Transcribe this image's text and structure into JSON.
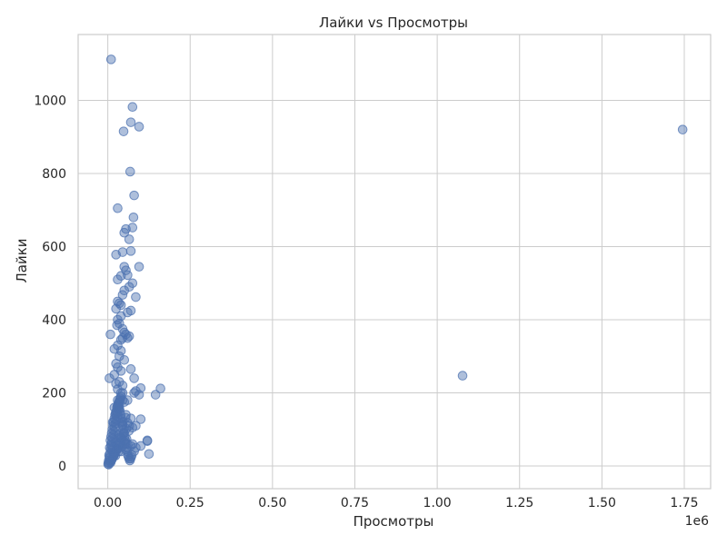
{
  "chart_data": {
    "type": "scatter",
    "title": "Лайки vs Просмотры",
    "xlabel": "Просмотры",
    "ylabel": "Лайки",
    "x_offset_label": "1e6",
    "xlim": [
      -0.09,
      1.83
    ],
    "ylim": [
      -62,
      1180
    ],
    "x_ticks": [
      0.0,
      0.25,
      0.5,
      0.75,
      1.0,
      1.25,
      1.5,
      1.75
    ],
    "x_tick_labels": [
      "0.00",
      "0.25",
      "0.50",
      "0.75",
      "1.00",
      "1.25",
      "1.50",
      "1.75"
    ],
    "y_ticks": [
      0,
      200,
      400,
      600,
      800,
      1000
    ],
    "y_tick_labels": [
      "0",
      "200",
      "400",
      "600",
      "800",
      "1000"
    ],
    "grid": true,
    "colors": {
      "points": "#4c72b0",
      "grid": "#cccccc",
      "text": "#262626"
    },
    "series": [
      {
        "x": [
          0.01,
          0.075,
          0.07,
          0.048,
          0.095,
          1.745,
          0.068,
          0.08,
          0.03,
          0.078,
          0.075,
          0.055,
          0.05,
          0.065,
          0.045,
          0.07,
          0.025,
          0.05,
          0.055,
          0.095,
          0.04,
          0.03,
          0.06,
          0.075,
          0.085,
          0.03,
          0.05,
          0.045,
          0.065,
          0.04,
          0.035,
          0.025,
          0.008,
          0.07,
          0.04,
          0.03,
          0.06,
          0.028,
          0.035,
          0.045,
          0.05,
          0.055,
          0.045,
          0.04,
          0.03,
          0.02,
          0.06,
          0.065,
          0.04,
          0.035,
          0.05,
          0.025,
          0.03,
          0.04,
          0.07,
          0.08,
          0.02,
          0.005,
          0.16,
          0.1,
          0.085,
          0.095,
          0.145,
          0.08,
          0.045,
          0.06,
          0.05,
          0.03,
          0.035,
          0.1,
          0.07,
          0.06,
          0.045,
          0.085,
          0.075,
          0.12,
          0.1,
          0.08,
          0.125,
          0.06,
          0.12,
          0.075,
          0.07,
          0.085,
          0.055,
          0.04,
          1.077,
          0.035,
          0.025,
          0.03,
          0.045,
          0.04,
          0.038,
          0.036,
          0.034,
          0.032,
          0.03,
          0.028,
          0.026,
          0.024,
          0.022,
          0.02,
          0.018,
          0.016,
          0.014,
          0.012,
          0.01,
          0.008,
          0.006,
          0.004,
          0.002,
          0.001,
          0.003,
          0.005,
          0.007,
          0.009,
          0.011,
          0.013,
          0.015,
          0.017,
          0.019,
          0.021,
          0.023,
          0.025,
          0.027,
          0.029,
          0.031,
          0.033,
          0.035,
          0.037,
          0.039,
          0.041,
          0.043,
          0.045,
          0.047,
          0.049,
          0.051,
          0.053,
          0.055,
          0.057,
          0.059,
          0.061,
          0.063,
          0.065,
          0.067,
          0.069,
          0.071,
          0.073,
          0.04,
          0.03,
          0.02,
          0.01,
          0.015,
          0.025,
          0.035,
          0.045,
          0.055,
          0.065,
          0.05,
          0.042,
          0.036,
          0.028,
          0.022,
          0.018,
          0.012,
          0.008,
          0.004,
          0.006,
          0.014,
          0.024,
          0.034,
          0.044,
          0.054,
          0.064,
          0.038,
          0.026,
          0.016,
          0.046,
          0.056,
          0.032,
          0.021,
          0.031,
          0.041,
          0.027,
          0.017,
          0.037,
          0.047,
          0.057,
          0.019,
          0.029,
          0.039,
          0.049,
          0.011,
          0.023,
          0.033,
          0.043,
          0.053,
          0.013,
          0.009,
          0.003
        ],
        "y": [
          1112,
          982,
          940,
          915,
          928,
          920,
          805,
          740,
          705,
          680,
          652,
          648,
          638,
          620,
          585,
          588,
          578,
          545,
          535,
          545,
          520,
          510,
          522,
          500,
          462,
          450,
          480,
          468,
          490,
          440,
          445,
          430,
          360,
          425,
          410,
          400,
          420,
          385,
          390,
          375,
          365,
          360,
          350,
          345,
          330,
          320,
          350,
          355,
          315,
          300,
          290,
          280,
          270,
          260,
          265,
          240,
          250,
          240,
          212,
          213,
          205,
          195,
          195,
          200,
          220,
          180,
          175,
          165,
          155,
          128,
          130,
          118,
          115,
          110,
          105,
          70,
          55,
          40,
          33,
          60,
          68,
          60,
          55,
          50,
          45,
          40,
          247,
          230,
          225,
          210,
          200,
          190,
          185,
          180,
          175,
          170,
          165,
          160,
          150,
          145,
          140,
          130,
          120,
          110,
          100,
          90,
          80,
          70,
          50,
          30,
          10,
          5,
          15,
          25,
          35,
          45,
          55,
          65,
          75,
          85,
          95,
          105,
          115,
          125,
          135,
          145,
          155,
          165,
          175,
          150,
          140,
          130,
          120,
          110,
          100,
          90,
          80,
          70,
          60,
          50,
          40,
          30,
          25,
          20,
          15,
          20,
          25,
          30,
          200,
          180,
          160,
          60,
          120,
          140,
          160,
          180,
          140,
          110,
          90,
          75,
          62,
          48,
          38,
          28,
          18,
          12,
          8,
          22,
          44,
          66,
          88,
          112,
          132,
          96,
          78,
          58,
          36,
          122,
          102,
          84,
          33,
          55,
          77,
          44,
          26,
          66,
          88,
          74,
          34,
          46,
          58,
          68,
          16,
          28,
          40,
          52,
          64,
          20,
          10,
          4
        ]
      }
    ]
  }
}
